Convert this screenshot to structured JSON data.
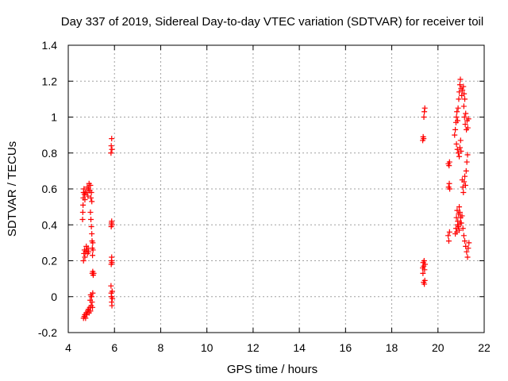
{
  "chart_data": {
    "type": "scatter",
    "title": "Day 337 of 2019, Sidereal Day-to-day VTEC variation (SDTVAR) for receiver toil",
    "xlabel": "GPS time / hours",
    "ylabel": "SDTVAR / TECUs",
    "xlim": [
      4,
      22
    ],
    "ylim": [
      -0.2,
      1.4
    ],
    "xticks": [
      "4",
      "6",
      "8",
      "10",
      "12",
      "14",
      "16",
      "18",
      "20",
      "22"
    ],
    "yticks": [
      "-0.2",
      "0",
      "0.2",
      "0.4",
      "0.6",
      "0.8",
      "1",
      "1.2",
      "1.4"
    ],
    "grid": true,
    "marker": "plus",
    "color": "#ff0000",
    "series": [
      {
        "points": [
          [
            4.62,
            0.43
          ],
          [
            4.63,
            0.47
          ],
          [
            4.64,
            0.51
          ],
          [
            4.65,
            0.55
          ],
          [
            4.66,
            0.58
          ],
          [
            4.68,
            0.6
          ],
          [
            4.7,
            0.57
          ],
          [
            4.72,
            0.54
          ],
          [
            4.74,
            0.58
          ],
          [
            4.66,
            0.2
          ],
          [
            4.68,
            0.24
          ],
          [
            4.7,
            0.26
          ],
          [
            4.72,
            0.22
          ],
          [
            4.75,
            0.25
          ],
          [
            4.78,
            0.28
          ],
          [
            4.8,
            0.26
          ],
          [
            4.83,
            0.24
          ],
          [
            4.86,
            0.27
          ],
          [
            4.88,
            0.25
          ],
          [
            4.66,
            -0.12
          ],
          [
            4.69,
            -0.11
          ],
          [
            4.72,
            -0.1
          ],
          [
            4.75,
            -0.12
          ],
          [
            4.78,
            -0.09
          ],
          [
            4.81,
            -0.1
          ],
          [
            4.84,
            -0.08
          ],
          [
            4.87,
            -0.07
          ],
          [
            4.9,
            -0.09
          ],
          [
            4.93,
            -0.06
          ],
          [
            4.96,
            -0.08
          ],
          [
            4.8,
            0.58
          ],
          [
            4.82,
            0.61
          ],
          [
            4.85,
            0.56
          ],
          [
            4.88,
            0.6
          ],
          [
            4.9,
            0.63
          ],
          [
            4.93,
            0.59
          ],
          [
            4.96,
            0.62
          ],
          [
            4.98,
            0.55
          ],
          [
            5.0,
            0.58
          ],
          [
            5.02,
            0.53
          ],
          [
            4.96,
            0.47
          ],
          [
            4.98,
            0.43
          ],
          [
            5.0,
            0.39
          ],
          [
            5.02,
            0.35
          ],
          [
            5.03,
            0.31
          ],
          [
            5.04,
            0.27
          ],
          [
            5.05,
            0.23
          ],
          [
            5.06,
            0.3
          ],
          [
            5.07,
            0.26
          ],
          [
            4.95,
            -0.02
          ],
          [
            4.97,
            0.01
          ],
          [
            4.99,
            -0.05
          ],
          [
            5.01,
            0.0
          ],
          [
            5.03,
            -0.03
          ],
          [
            5.05,
            -0.06
          ],
          [
            5.06,
            0.02
          ],
          [
            5.04,
            0.13
          ],
          [
            5.06,
            0.14
          ],
          [
            5.08,
            0.12
          ],
          [
            5.1,
            0.13
          ],
          [
            5.85,
            0.8
          ],
          [
            5.86,
            0.84
          ],
          [
            5.88,
            0.88
          ],
          [
            5.89,
            0.82
          ],
          [
            5.86,
            0.39
          ],
          [
            5.87,
            0.41
          ],
          [
            5.88,
            0.42
          ],
          [
            5.89,
            0.4
          ],
          [
            5.86,
            0.18
          ],
          [
            5.87,
            0.2
          ],
          [
            5.88,
            0.22
          ],
          [
            5.89,
            0.19
          ],
          [
            5.85,
            0.06
          ],
          [
            5.86,
            0.02
          ],
          [
            5.87,
            0.0
          ],
          [
            5.88,
            -0.03
          ],
          [
            5.89,
            -0.05
          ],
          [
            5.9,
            0.03
          ],
          [
            5.91,
            -0.01
          ],
          [
            19.34,
            0.87
          ],
          [
            19.36,
            0.89
          ],
          [
            19.38,
            0.88
          ],
          [
            19.39,
            1.0
          ],
          [
            19.41,
            1.03
          ],
          [
            19.43,
            1.05
          ],
          [
            19.34,
            0.16
          ],
          [
            19.35,
            0.13
          ],
          [
            19.36,
            0.19
          ],
          [
            19.38,
            0.17
          ],
          [
            19.4,
            0.2
          ],
          [
            19.42,
            0.15
          ],
          [
            19.44,
            0.18
          ],
          [
            19.38,
            0.08
          ],
          [
            19.41,
            0.07
          ],
          [
            19.43,
            0.09
          ],
          [
            20.45,
            0.74
          ],
          [
            20.48,
            0.73
          ],
          [
            20.5,
            0.75
          ],
          [
            20.46,
            0.61
          ],
          [
            20.49,
            0.63
          ],
          [
            20.51,
            0.6
          ],
          [
            20.44,
            0.34
          ],
          [
            20.47,
            0.31
          ],
          [
            20.5,
            0.36
          ],
          [
            20.72,
            0.9
          ],
          [
            20.75,
            0.93
          ],
          [
            20.78,
            0.97
          ],
          [
            20.8,
            1.0
          ],
          [
            20.82,
            1.03
          ],
          [
            20.85,
            0.98
          ],
          [
            20.87,
            1.05
          ],
          [
            20.8,
            0.85
          ],
          [
            20.84,
            0.82
          ],
          [
            20.88,
            0.8
          ],
          [
            20.92,
            0.78
          ],
          [
            20.95,
            0.83
          ],
          [
            20.98,
            0.87
          ],
          [
            21.0,
            0.81
          ],
          [
            20.9,
            1.1
          ],
          [
            20.92,
            1.14
          ],
          [
            20.95,
            1.18
          ],
          [
            20.97,
            1.21
          ],
          [
            21.0,
            1.16
          ],
          [
            21.03,
            1.12
          ],
          [
            21.06,
            1.15
          ],
          [
            21.1,
            1.17
          ],
          [
            21.13,
            1.13
          ],
          [
            21.16,
            1.1
          ],
          [
            21.12,
            1.06
          ],
          [
            21.15,
            1.0
          ],
          [
            21.18,
            0.96
          ],
          [
            21.2,
            1.02
          ],
          [
            21.23,
            0.93
          ],
          [
            21.26,
            0.98
          ],
          [
            21.29,
            0.94
          ],
          [
            21.32,
            0.99
          ],
          [
            21.05,
            0.65
          ],
          [
            21.08,
            0.61
          ],
          [
            21.1,
            0.58
          ],
          [
            21.13,
            0.64
          ],
          [
            21.16,
            0.67
          ],
          [
            21.19,
            0.62
          ],
          [
            21.22,
            0.7
          ],
          [
            21.25,
            0.75
          ],
          [
            21.28,
            0.79
          ],
          [
            20.8,
            0.44
          ],
          [
            20.83,
            0.48
          ],
          [
            20.86,
            0.42
          ],
          [
            20.89,
            0.46
          ],
          [
            20.92,
            0.5
          ],
          [
            20.95,
            0.47
          ],
          [
            20.98,
            0.44
          ],
          [
            21.01,
            0.41
          ],
          [
            21.04,
            0.45
          ],
          [
            20.75,
            0.35
          ],
          [
            20.78,
            0.38
          ],
          [
            20.82,
            0.36
          ],
          [
            20.85,
            0.4
          ],
          [
            20.88,
            0.39
          ],
          [
            20.92,
            0.37
          ],
          [
            20.96,
            0.41
          ],
          [
            21.08,
            0.38
          ],
          [
            21.12,
            0.34
          ],
          [
            21.16,
            0.31
          ],
          [
            21.2,
            0.28
          ],
          [
            21.24,
            0.25
          ],
          [
            21.28,
            0.22
          ],
          [
            21.31,
            0.27
          ],
          [
            21.34,
            0.3
          ]
        ]
      }
    ]
  }
}
